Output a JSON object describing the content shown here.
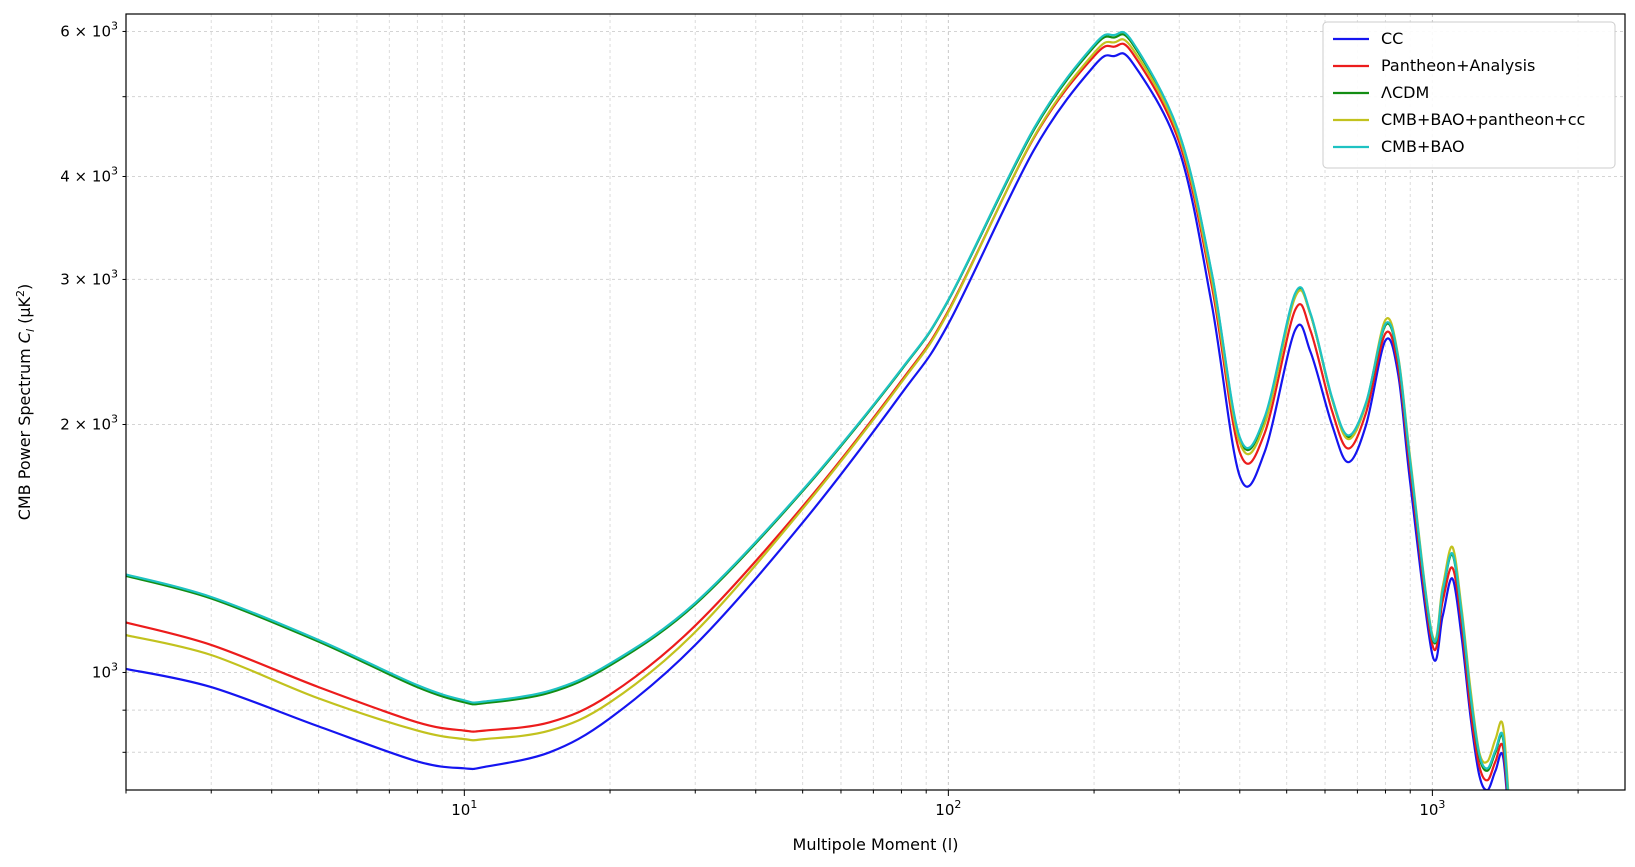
{
  "chart_data": {
    "type": "line",
    "xscale": "log",
    "yscale": "log",
    "xlim": [
      2,
      2500
    ],
    "ylim": [
      720,
      6300
    ],
    "xlabel": "Multipole Moment (l)",
    "ylabel_parts": {
      "main": "CMB Power Spectrum ",
      "sym": "C",
      "sub": "l",
      "unit_open": " (μK",
      "sup": "2",
      "unit_close": ")"
    },
    "x_tick_labels": [
      {
        "x": 10,
        "base": "10",
        "exp": "1"
      },
      {
        "x": 100,
        "base": "10",
        "exp": "2"
      },
      {
        "x": 1000,
        "base": "10",
        "exp": "3"
      }
    ],
    "y_tick_labels": [
      {
        "y": 1000,
        "base": "10",
        "exp": "3",
        "coef": ""
      },
      {
        "y": 2000,
        "base": "10",
        "exp": "3",
        "coef": "2 × "
      },
      {
        "y": 3000,
        "base": "10",
        "exp": "3",
        "coef": "3 × "
      },
      {
        "y": 4000,
        "base": "10",
        "exp": "3",
        "coef": "4 × "
      },
      {
        "y": 6000,
        "base": "10",
        "exp": "3",
        "coef": "6 × "
      }
    ],
    "grid": true,
    "legend_position": "top-right",
    "x": [
      2,
      3,
      5,
      8,
      10,
      11,
      15,
      20,
      30,
      50,
      80,
      100,
      150,
      200,
      220,
      240,
      300,
      350,
      400,
      450,
      520,
      560,
      620,
      670,
      730,
      800,
      850,
      900,
      1000,
      1050,
      1100,
      1150,
      1200,
      1250,
      1300,
      1350,
      1400,
      1450
    ],
    "series": [
      {
        "name": "CC",
        "color": "#1515f0",
        "values": [
          1010,
          960,
          860,
          780,
          765,
          768,
          800,
          880,
          1080,
          1520,
          2180,
          2650,
          4300,
          5450,
          5600,
          5500,
          4300,
          2800,
          1730,
          1850,
          2600,
          2450,
          2000,
          1800,
          2000,
          2530,
          2300,
          1700,
          1050,
          1170,
          1300,
          1100,
          880,
          750,
          720,
          760,
          790,
          620
        ]
      },
      {
        "name": "Pantheon+Analysis",
        "color": "#ec1c1c",
        "values": [
          1150,
          1080,
          960,
          870,
          850,
          850,
          870,
          940,
          1140,
          1590,
          2260,
          2750,
          4450,
          5600,
          5750,
          5650,
          4400,
          2950,
          1850,
          1950,
          2750,
          2600,
          2080,
          1870,
          2070,
          2580,
          2350,
          1760,
          1080,
          1220,
          1340,
          1140,
          900,
          770,
          740,
          780,
          810,
          630
        ]
      },
      {
        "name": "ΛCDM",
        "color": "#138d13",
        "values": [
          1310,
          1230,
          1090,
          960,
          920,
          918,
          945,
          1020,
          1210,
          1660,
          2330,
          2830,
          4550,
          5750,
          5900,
          5800,
          4500,
          3050,
          1920,
          2030,
          2870,
          2720,
          2150,
          1930,
          2120,
          2640,
          2400,
          1800,
          1100,
          1250,
          1390,
          1170,
          930,
          790,
          760,
          800,
          830,
          640
        ]
      },
      {
        "name": "CMB+BAO+pantheon+cc",
        "color": "#c2c21e",
        "values": [
          1110,
          1050,
          930,
          850,
          830,
          830,
          850,
          920,
          1120,
          1580,
          2250,
          2740,
          4460,
          5650,
          5820,
          5720,
          4460,
          3000,
          1900,
          2000,
          2850,
          2720,
          2150,
          1920,
          2120,
          2680,
          2420,
          1820,
          1110,
          1270,
          1420,
          1190,
          950,
          800,
          780,
          830,
          860,
          650
        ]
      },
      {
        "name": "CMB+BAO",
        "color": "#1ec2c2",
        "values": [
          1315,
          1235,
          1095,
          965,
          925,
          922,
          950,
          1025,
          1215,
          1665,
          2335,
          2835,
          4570,
          5780,
          5940,
          5830,
          4510,
          3060,
          1930,
          2040,
          2880,
          2730,
          2160,
          1940,
          2130,
          2650,
          2410,
          1805,
          1105,
          1255,
          1395,
          1175,
          935,
          795,
          765,
          805,
          835,
          645
        ]
      }
    ]
  }
}
